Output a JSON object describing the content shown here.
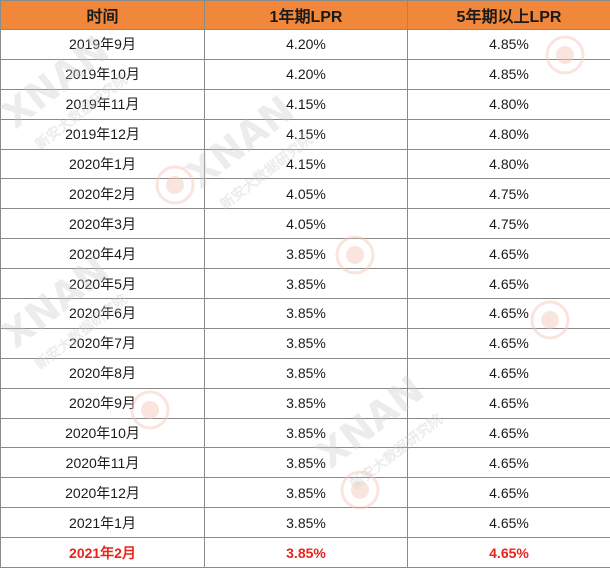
{
  "table": {
    "headers": [
      "时间",
      "1年期LPR",
      "5年期以上LPR"
    ],
    "rows": [
      [
        "2019年9月",
        "4.20%",
        "4.85%"
      ],
      [
        "2019年10月",
        "4.20%",
        "4.85%"
      ],
      [
        "2019年11月",
        "4.15%",
        "4.80%"
      ],
      [
        "2019年12月",
        "4.15%",
        "4.80%"
      ],
      [
        "2020年1月",
        "4.15%",
        "4.80%"
      ],
      [
        "2020年2月",
        "4.05%",
        "4.75%"
      ],
      [
        "2020年3月",
        "4.05%",
        "4.75%"
      ],
      [
        "2020年4月",
        "3.85%",
        "4.65%"
      ],
      [
        "2020年5月",
        "3.85%",
        "4.65%"
      ],
      [
        "2020年6月",
        "3.85%",
        "4.65%"
      ],
      [
        "2020年7月",
        "3.85%",
        "4.65%"
      ],
      [
        "2020年8月",
        "3.85%",
        "4.65%"
      ],
      [
        "2020年9月",
        "3.85%",
        "4.65%"
      ],
      [
        "2020年10月",
        "3.85%",
        "4.65%"
      ],
      [
        "2020年11月",
        "3.85%",
        "4.65%"
      ],
      [
        "2020年12月",
        "3.85%",
        "4.65%"
      ],
      [
        "2021年1月",
        "3.85%",
        "4.65%"
      ],
      [
        "2021年2月",
        "3.85%",
        "4.65%"
      ]
    ],
    "highlight_row_index": 17
  },
  "colors": {
    "header_bg": "#f0873a",
    "highlight_text": "#e8231b",
    "watermark": "#f3c6b8"
  },
  "watermark": {
    "brand": "XNAN",
    "sub": "新安大数据研究院"
  }
}
